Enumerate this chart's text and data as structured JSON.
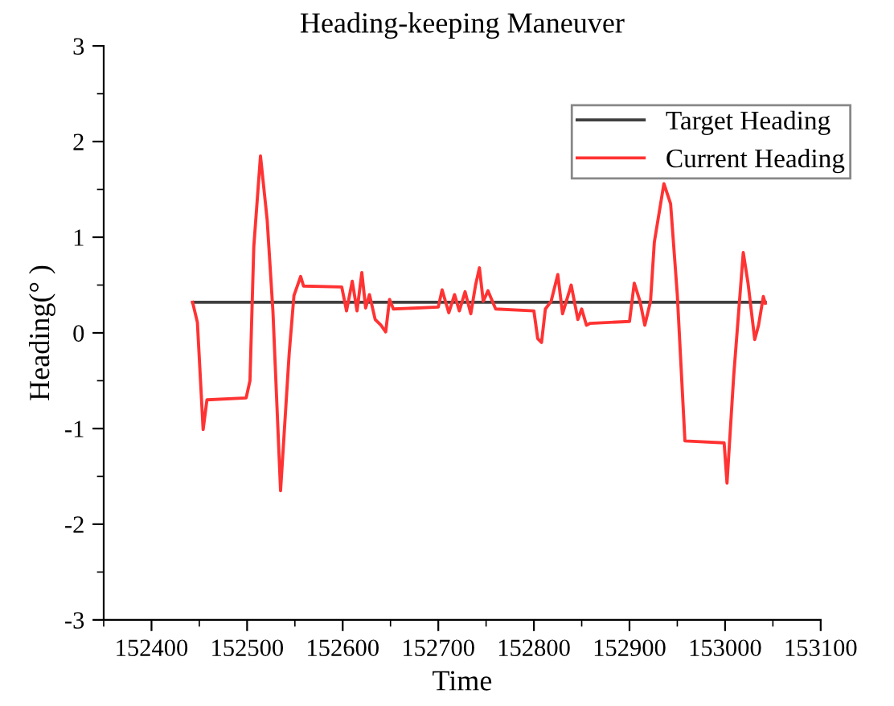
{
  "chart_data": {
    "type": "line",
    "title": "Heading-keeping Maneuver",
    "xlabel": "Time",
    "ylabel": "Heading(° )",
    "xlim": [
      152350,
      153100
    ],
    "xticks": [
      152400,
      152500,
      152600,
      152700,
      152800,
      152900,
      153000,
      153100
    ],
    "ylim": [
      -3,
      3
    ],
    "yticks": [
      -3,
      -2,
      -1,
      0,
      1,
      2,
      3
    ],
    "grid": false,
    "legend": "top right",
    "marker": "none",
    "line_style": "solid",
    "series": [
      {
        "name": "Target Heading",
        "color": "#3f3f3f",
        "x": [
          152443,
          153042
        ],
        "values": [
          0.32,
          0.32
        ]
      },
      {
        "name": "Current Heading",
        "color": "#ff3333",
        "x": [
          152443,
          152448,
          152454,
          152458,
          152499,
          152503,
          152507,
          152514,
          152521,
          152527,
          152535,
          152544,
          152549,
          152556,
          152559,
          152599,
          152604,
          152610,
          152615,
          152620,
          152624,
          152628,
          152634,
          152640,
          152645,
          152649,
          152653,
          152700,
          152704,
          152711,
          152717,
          152722,
          152728,
          152734,
          152739,
          152743,
          152747,
          152752,
          152760,
          152800,
          152804,
          152808,
          152812,
          152818,
          152825,
          152830,
          152839,
          152846,
          152850,
          152855,
          152859,
          152900,
          152905,
          152911,
          152916,
          152922,
          152926,
          152936,
          152943,
          152950,
          152958,
          152999,
          153002,
          153009,
          153019,
          153024,
          153031,
          153035,
          153040,
          153042
        ],
        "values": [
          0.32,
          0.11,
          -1.01,
          -0.7,
          -0.68,
          -0.5,
          0.9,
          1.85,
          1.18,
          0.23,
          -1.65,
          -0.22,
          0.39,
          0.59,
          0.49,
          0.48,
          0.23,
          0.54,
          0.23,
          0.63,
          0.26,
          0.4,
          0.14,
          0.08,
          0.01,
          0.35,
          0.25,
          0.27,
          0.45,
          0.21,
          0.4,
          0.23,
          0.43,
          0.2,
          0.5,
          0.68,
          0.33,
          0.44,
          0.25,
          0.23,
          -0.06,
          -0.1,
          0.25,
          0.33,
          0.61,
          0.2,
          0.5,
          0.14,
          0.25,
          0.08,
          0.1,
          0.12,
          0.52,
          0.33,
          0.08,
          0.33,
          0.95,
          1.56,
          1.35,
          0.4,
          -1.13,
          -1.15,
          -1.57,
          -0.45,
          0.84,
          0.52,
          -0.07,
          0.08,
          0.38,
          0.31
        ]
      }
    ]
  }
}
